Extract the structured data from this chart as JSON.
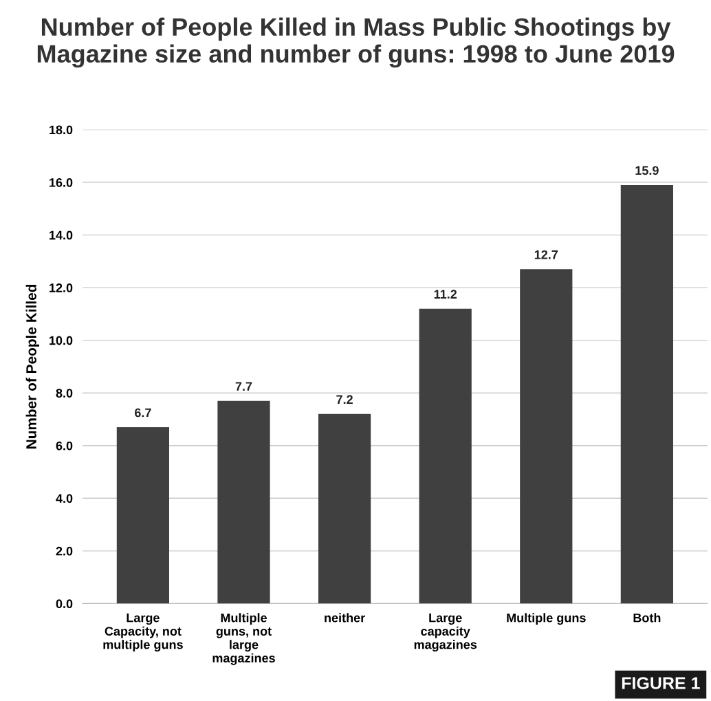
{
  "chart_data": {
    "type": "bar",
    "title": "Number of People Killed in Mass Public Shootings by Magazine size and number of guns: 1998 to June 2019",
    "ylabel": "Number of People Killed",
    "categories": [
      "Large\nCapacity, not\nmultiple guns",
      "Multiple\nguns, not\nlarge\nmagazines",
      "neither",
      "Large\ncapacity\nmagazines",
      "Multiple guns",
      "Both"
    ],
    "values": [
      6.7,
      7.7,
      7.2,
      11.2,
      12.7,
      15.9
    ],
    "color": "#404040",
    "data_labels": true,
    "ylim": [
      0,
      18
    ],
    "yticks": [
      {
        "value": 0,
        "label": "0.0"
      },
      {
        "value": 2,
        "label": "2.0"
      },
      {
        "value": 4,
        "label": "4.0"
      },
      {
        "value": 6,
        "label": "6.0"
      },
      {
        "value": 8,
        "label": "8.0"
      },
      {
        "value": 10,
        "label": "10.0"
      },
      {
        "value": 12,
        "label": "12.0"
      },
      {
        "value": 14,
        "label": "14.0"
      },
      {
        "value": 16,
        "label": "16.0"
      },
      {
        "value": 18,
        "label": "18.0"
      }
    ],
    "grid": "y",
    "legend": false,
    "annotations": [
      "FIGURE 1"
    ]
  }
}
